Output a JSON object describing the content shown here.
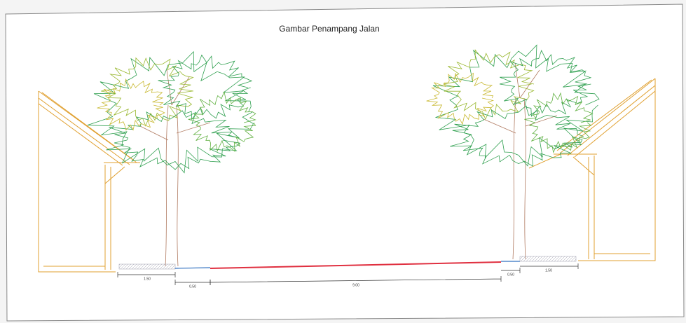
{
  "title": "Gambar Penampang Jalan",
  "dimensions": [
    "1.50",
    "0.50",
    "9.00",
    "0.50",
    "1.50"
  ]
}
